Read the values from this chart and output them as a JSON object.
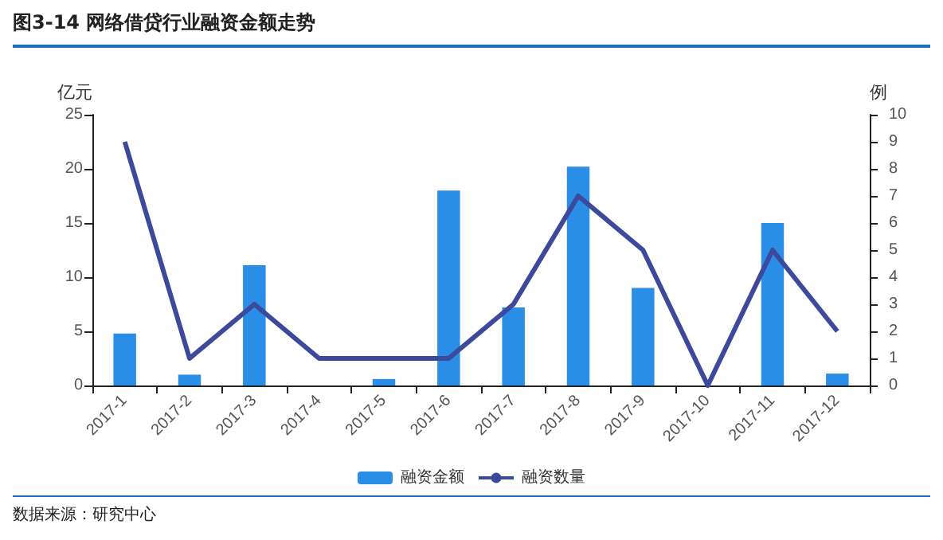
{
  "chart_data": {
    "type": "bar",
    "title": "图3-14  网络借贷行业融资金额走势",
    "ylabel": "亿元",
    "y2label": "例",
    "categories": [
      "2017-1",
      "2017-2",
      "2017-3",
      "2017-4",
      "2017-5",
      "2017-6",
      "2017-7",
      "2017-8",
      "2017-9",
      "2017-10",
      "2017-11",
      "2017-12"
    ],
    "series": [
      {
        "name": "融资金额",
        "color": "#2a8ee6",
        "values": [
          4.8,
          1.0,
          11.1,
          0,
          0.6,
          18.0,
          7.2,
          20.2,
          9.0,
          0,
          15.0,
          1.1
        ]
      },
      {
        "name": "融资数量",
        "type": "line",
        "axis": "y2",
        "color": "#3d4a9c",
        "values": [
          9,
          1,
          3,
          1,
          1,
          1,
          3,
          7,
          5,
          0,
          5,
          2
        ]
      }
    ],
    "ylim": [
      0,
      25
    ],
    "yticks": [
      0,
      5,
      10,
      15,
      20,
      25
    ],
    "y2lim": [
      0,
      10
    ],
    "y2ticks": [
      0,
      1,
      2,
      3,
      4,
      5,
      6,
      7,
      8,
      9,
      10
    ],
    "grid": false,
    "legend": "bottom",
    "marker": "none",
    "line_style": "solid",
    "annotations": [
      "数据来源：研究中心"
    ]
  }
}
